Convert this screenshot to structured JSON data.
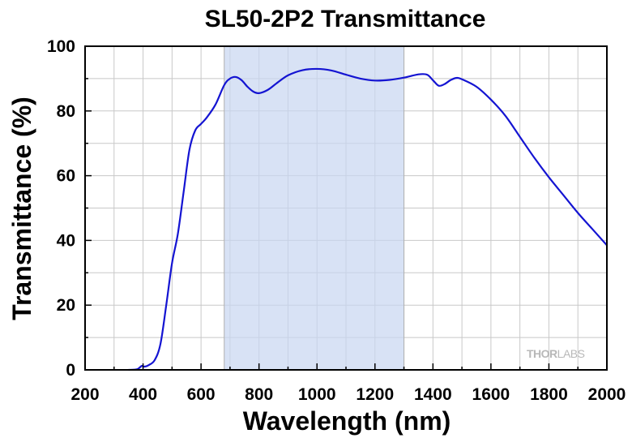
{
  "chart_data": {
    "type": "line",
    "title": "SL50-2P2 Transmittance",
    "xlabel": "Wavelength (nm)",
    "ylabel": "Transmittance (%)",
    "xlim": [
      200,
      2000
    ],
    "ylim": [
      0,
      100
    ],
    "x_ticks": [
      "200",
      "400",
      "600",
      "800",
      "1000",
      "1200",
      "1400",
      "1600",
      "1800",
      "2000"
    ],
    "y_ticks": [
      "0",
      "20",
      "40",
      "60",
      "80",
      "100"
    ],
    "grid": true,
    "highlight_band": {
      "x_start": 680,
      "x_end": 1300,
      "color": "#c8d6f1"
    },
    "watermark": {
      "part1": "THOR",
      "part2": "LABS"
    },
    "series": [
      {
        "color": "#1414d2",
        "x": [
          350,
          380,
          395,
          405,
          420,
          440,
          460,
          480,
          500,
          520,
          540,
          560,
          580,
          600,
          620,
          650,
          680,
          700,
          720,
          740,
          760,
          780,
          800,
          830,
          860,
          900,
          950,
          1000,
          1050,
          1100,
          1150,
          1200,
          1250,
          1300,
          1350,
          1380,
          1400,
          1420,
          1440,
          1460,
          1480,
          1500,
          1550,
          1600,
          1650,
          1700,
          1750,
          1800,
          1850,
          1900,
          1950,
          2000
        ],
        "y": [
          0,
          0.2,
          1.2,
          1.0,
          1.5,
          3,
          8,
          20,
          33,
          42,
          55,
          68,
          74,
          76,
          78,
          82,
          88,
          90,
          90.5,
          89.5,
          87.5,
          86,
          85.5,
          86.5,
          88.5,
          91,
          92.6,
          93,
          92.5,
          91.2,
          90,
          89.4,
          89.6,
          90.3,
          91.3,
          91.2,
          89.5,
          87.8,
          88.3,
          89.5,
          90.2,
          89.8,
          87.5,
          83.5,
          78.5,
          72,
          65.5,
          59.5,
          54,
          48.5,
          43.5,
          38.5
        ]
      }
    ]
  }
}
